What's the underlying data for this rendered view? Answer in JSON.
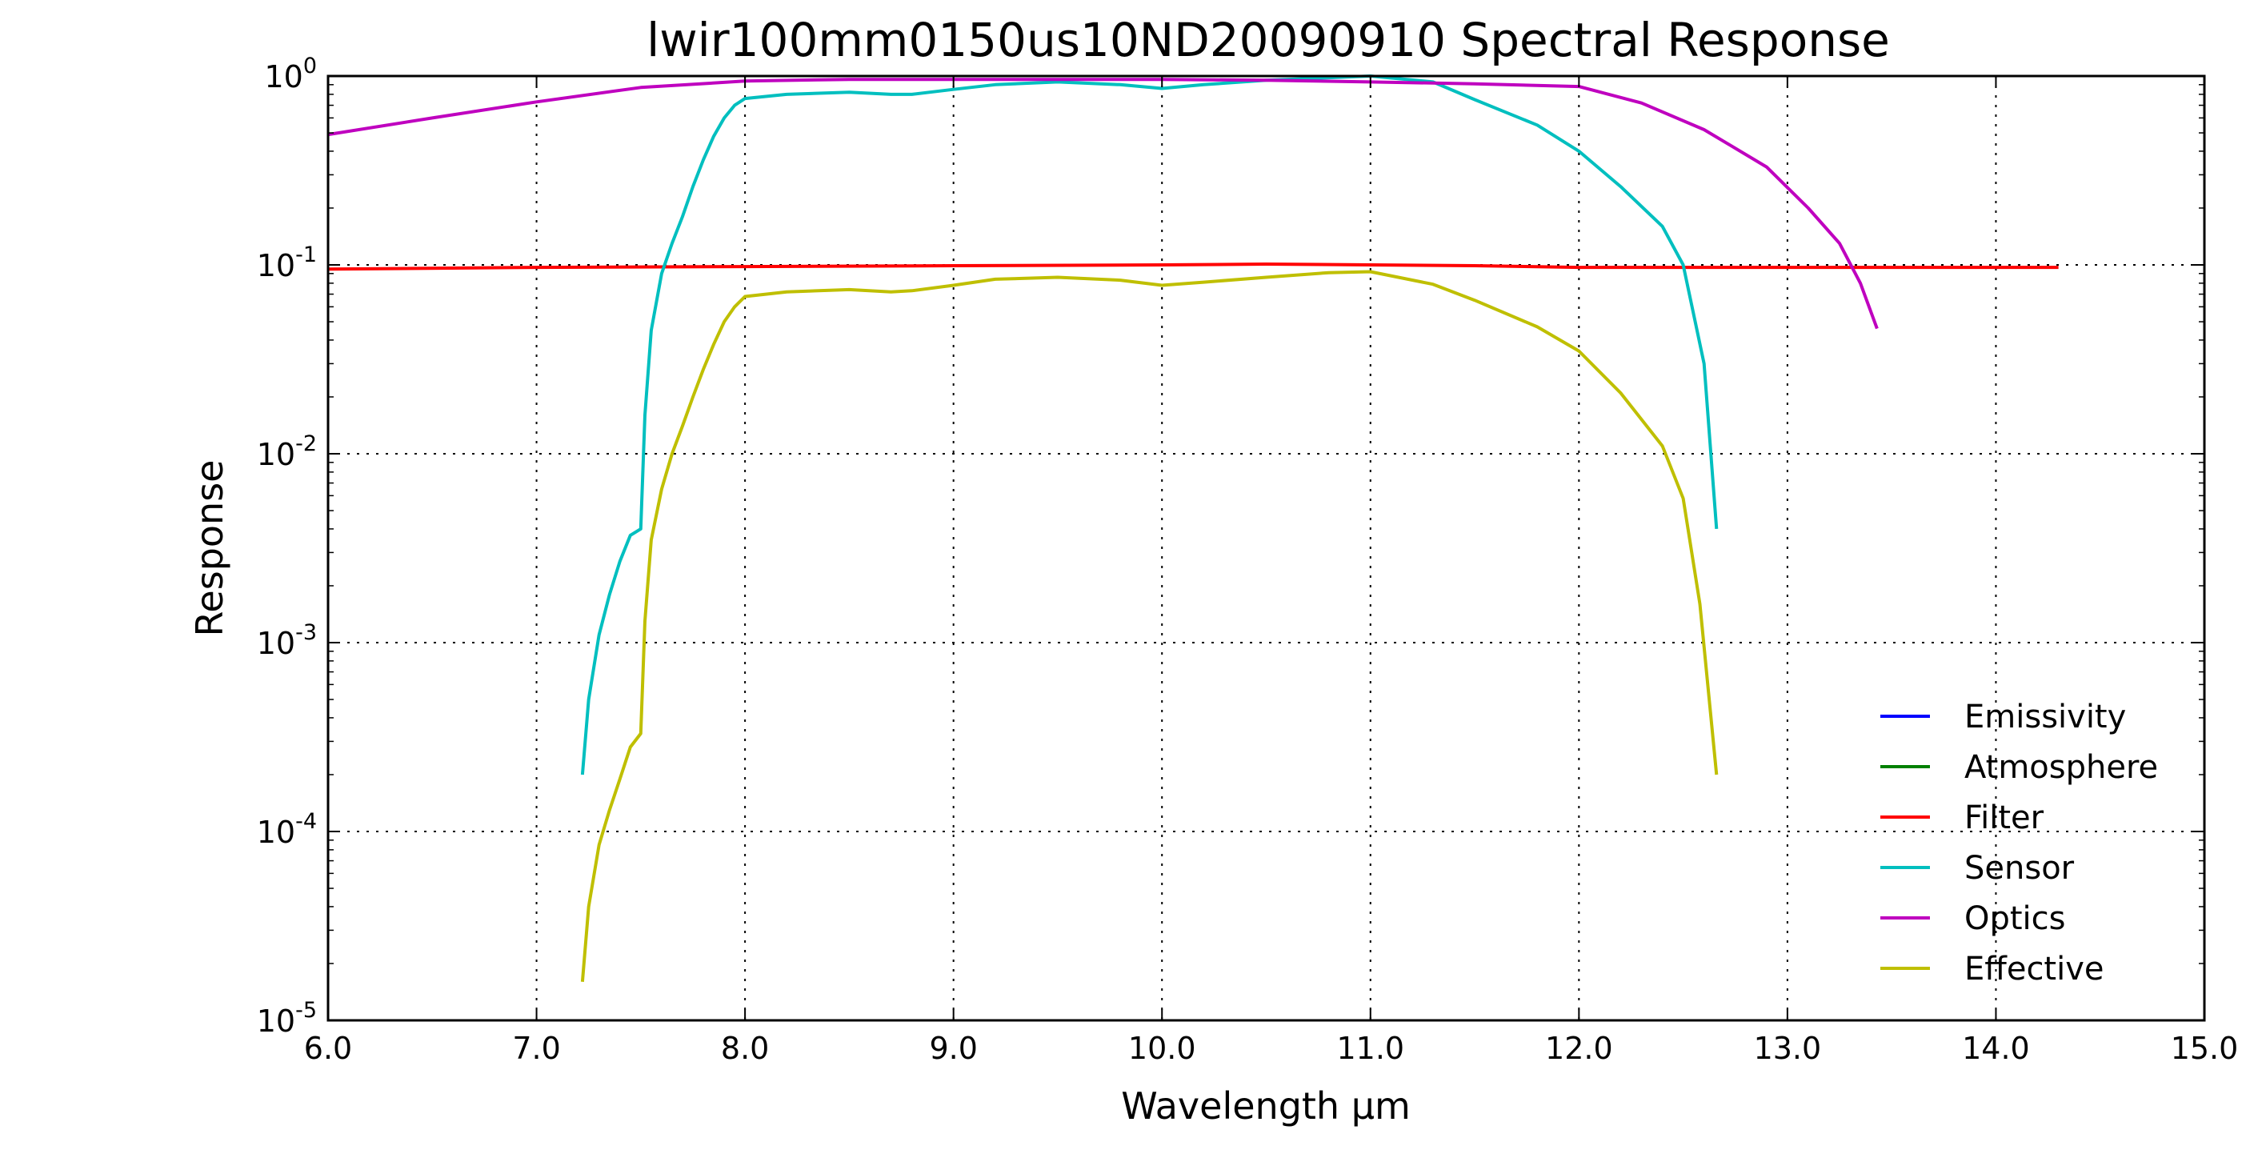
{
  "chart_data": {
    "type": "line",
    "title": "lwir100mm0150us10ND20090910 Spectral Response",
    "xlabel": "Wavelength μm",
    "ylabel": "Response",
    "xlim": [
      6.0,
      15.0
    ],
    "ylim": [
      1e-05,
      1
    ],
    "yscale": "log",
    "grid": true,
    "legend_position": "lower-right",
    "x_ticks": [
      "6.0",
      "7.0",
      "8.0",
      "9.0",
      "10.0",
      "11.0",
      "12.0",
      "13.0",
      "14.0",
      "15.0"
    ],
    "y_ticks": [
      {
        "base": "10",
        "exp": "0",
        "value": 1
      },
      {
        "base": "10",
        "exp": "-1",
        "value": 0.1
      },
      {
        "base": "10",
        "exp": "-2",
        "value": 0.01
      },
      {
        "base": "10",
        "exp": "-3",
        "value": 0.001
      },
      {
        "base": "10",
        "exp": "-4",
        "value": 0.0001
      },
      {
        "base": "10",
        "exp": "-5",
        "value": 1e-05
      }
    ],
    "series": [
      {
        "name": "Emissivity",
        "color": "#0000ff",
        "x": [],
        "y": []
      },
      {
        "name": "Atmosphere",
        "color": "#008000",
        "x": [],
        "y": []
      },
      {
        "name": "Filter",
        "color": "#ff0000",
        "x": [
          6.0,
          7.0,
          8.0,
          9.0,
          10.0,
          10.5,
          11.0,
          11.5,
          12.0,
          13.0,
          14.0,
          14.3
        ],
        "y": [
          0.095,
          0.097,
          0.098,
          0.099,
          0.1,
          0.101,
          0.1,
          0.099,
          0.097,
          0.097,
          0.097,
          0.097
        ]
      },
      {
        "name": "Sensor",
        "color": "#00bfbf",
        "x": [
          7.22,
          7.25,
          7.3,
          7.35,
          7.4,
          7.45,
          7.5,
          7.52,
          7.55,
          7.6,
          7.65,
          7.7,
          7.75,
          7.8,
          7.85,
          7.9,
          7.95,
          8.0,
          8.2,
          8.5,
          8.7,
          8.8,
          9.0,
          9.2,
          9.5,
          9.8,
          10.0,
          10.2,
          10.5,
          10.8,
          11.0,
          11.3,
          11.5,
          11.8,
          12.0,
          12.2,
          12.4,
          12.5,
          12.6,
          12.66
        ],
        "y": [
          0.0002,
          0.0005,
          0.0011,
          0.0018,
          0.0027,
          0.0037,
          0.004,
          0.016,
          0.045,
          0.09,
          0.13,
          0.18,
          0.26,
          0.36,
          0.48,
          0.6,
          0.7,
          0.76,
          0.8,
          0.82,
          0.8,
          0.8,
          0.85,
          0.9,
          0.93,
          0.9,
          0.86,
          0.9,
          0.95,
          0.98,
          1.0,
          0.93,
          0.75,
          0.55,
          0.4,
          0.26,
          0.16,
          0.1,
          0.03,
          0.004
        ]
      },
      {
        "name": "Optics",
        "color": "#bf00bf",
        "x": [
          6.0,
          6.5,
          7.0,
          7.5,
          8.0,
          8.5,
          9.0,
          9.5,
          10.0,
          10.5,
          11.0,
          11.5,
          12.0,
          12.3,
          12.6,
          12.9,
          13.1,
          13.25,
          13.35,
          13.43
        ],
        "y": [
          0.49,
          0.6,
          0.73,
          0.87,
          0.94,
          0.96,
          0.96,
          0.96,
          0.96,
          0.95,
          0.93,
          0.91,
          0.88,
          0.72,
          0.52,
          0.33,
          0.2,
          0.13,
          0.08,
          0.046
        ]
      },
      {
        "name": "Effective",
        "color": "#bfbf00",
        "x": [
          7.22,
          7.25,
          7.3,
          7.35,
          7.4,
          7.45,
          7.5,
          7.52,
          7.55,
          7.6,
          7.65,
          7.7,
          7.75,
          7.8,
          7.85,
          7.9,
          7.95,
          8.0,
          8.2,
          8.5,
          8.7,
          8.8,
          9.0,
          9.2,
          9.5,
          9.8,
          10.0,
          10.2,
          10.5,
          10.8,
          11.0,
          11.3,
          11.5,
          11.8,
          12.0,
          12.2,
          12.4,
          12.5,
          12.58,
          12.66
        ],
        "y": [
          1.6e-05,
          4e-05,
          8.5e-05,
          0.00013,
          0.00019,
          0.00028,
          0.00033,
          0.0013,
          0.0035,
          0.0065,
          0.01,
          0.014,
          0.02,
          0.028,
          0.038,
          0.05,
          0.06,
          0.068,
          0.072,
          0.074,
          0.072,
          0.073,
          0.078,
          0.084,
          0.086,
          0.083,
          0.078,
          0.081,
          0.086,
          0.091,
          0.092,
          0.079,
          0.065,
          0.047,
          0.035,
          0.021,
          0.011,
          0.0058,
          0.0016,
          0.0002
        ]
      }
    ]
  }
}
